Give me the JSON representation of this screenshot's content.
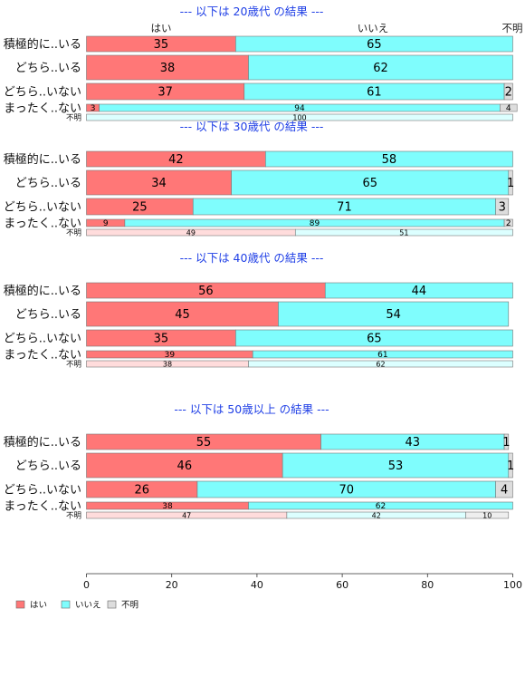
{
  "chart_data": {
    "type": "bar",
    "orientation": "horizontal",
    "stacked": true,
    "percent": true,
    "column_labels": [
      "はい",
      "いいえ",
      "不明"
    ],
    "colors": {
      "はい": "#ff7777",
      "いいえ": "#7ffdfd",
      "不明": "#dddddd",
      "はい_faded": "#ffdcdc",
      "いいえ_faded": "#dcffff",
      "不明_faded": "#eeeeee",
      "title": "#1f3fe6"
    },
    "xlim": [
      0,
      100
    ],
    "xticks": [
      0,
      20,
      40,
      60,
      80,
      100
    ],
    "grid": false,
    "legend_position": "bottom-left",
    "legend": [
      "はい",
      "いいえ",
      "不明"
    ],
    "panels": [
      {
        "title": "--- 以下は 20歳代 の結果 ---",
        "rows": [
          {
            "label": "積極的に..いる",
            "values": [
              35,
              65,
              0
            ],
            "labels": [
              "35",
              "65",
              ""
            ]
          },
          {
            "label": "どちら..いる",
            "values": [
              38,
              62,
              0
            ],
            "labels": [
              "38",
              "62",
              ""
            ]
          },
          {
            "label": "どちら..いない",
            "values": [
              37,
              61,
              2
            ],
            "labels": [
              "37",
              "61",
              "2"
            ]
          },
          {
            "label": "まったく..ない",
            "values": [
              3,
              94,
              4
            ],
            "labels": [
              "3",
              "94",
              "4"
            ]
          },
          {
            "label": "不明",
            "values": [
              0,
              100,
              0
            ],
            "labels": [
              "",
              "100",
              ""
            ]
          }
        ]
      },
      {
        "title": "--- 以下は 30歳代 の結果 ---",
        "rows": [
          {
            "label": "積極的に..いる",
            "values": [
              42,
              58,
              0
            ],
            "labels": [
              "42",
              "58",
              ""
            ]
          },
          {
            "label": "どちら..いる",
            "values": [
              34,
              65,
              1
            ],
            "labels": [
              "34",
              "65",
              "1"
            ]
          },
          {
            "label": "どちら..いない",
            "values": [
              25,
              71,
              3
            ],
            "labels": [
              "25",
              "71",
              "3"
            ]
          },
          {
            "label": "まったく..ない",
            "values": [
              9,
              89,
              2
            ],
            "labels": [
              "9",
              "89",
              "2"
            ]
          },
          {
            "label": "不明",
            "values": [
              49,
              51,
              0
            ],
            "labels": [
              "49",
              "51",
              ""
            ]
          }
        ]
      },
      {
        "title": "--- 以下は 40歳代 の結果 ---",
        "rows": [
          {
            "label": "積極的に..いる",
            "values": [
              56,
              44,
              0
            ],
            "labels": [
              "56",
              "44",
              ""
            ]
          },
          {
            "label": "どちら..いる",
            "values": [
              45,
              54,
              0
            ],
            "labels": [
              "45",
              "54",
              ""
            ]
          },
          {
            "label": "どちら..いない",
            "values": [
              35,
              65,
              0
            ],
            "labels": [
              "35",
              "65",
              ""
            ]
          },
          {
            "label": "まったく..ない",
            "values": [
              39,
              61,
              0
            ],
            "labels": [
              "39",
              "61",
              ""
            ]
          },
          {
            "label": "不明",
            "values": [
              38,
              62,
              0
            ],
            "labels": [
              "38",
              "62",
              ""
            ]
          }
        ]
      },
      {
        "title": "--- 以下は 50歳以上 の結果 ---",
        "rows": [
          {
            "label": "積極的に..いる",
            "values": [
              55,
              43,
              1
            ],
            "labels": [
              "55",
              "43",
              "1"
            ]
          },
          {
            "label": "どちら..いる",
            "values": [
              46,
              53,
              1
            ],
            "labels": [
              "46",
              "53",
              "1"
            ]
          },
          {
            "label": "どちら..いない",
            "values": [
              26,
              70,
              4
            ],
            "labels": [
              "26",
              "70",
              "4"
            ]
          },
          {
            "label": "まったく..ない",
            "values": [
              38,
              62,
              0
            ],
            "labels": [
              "38",
              "62",
              ""
            ]
          },
          {
            "label": "不明",
            "values": [
              47,
              42,
              10
            ],
            "labels": [
              "47",
              "42",
              "10"
            ]
          }
        ]
      }
    ]
  }
}
